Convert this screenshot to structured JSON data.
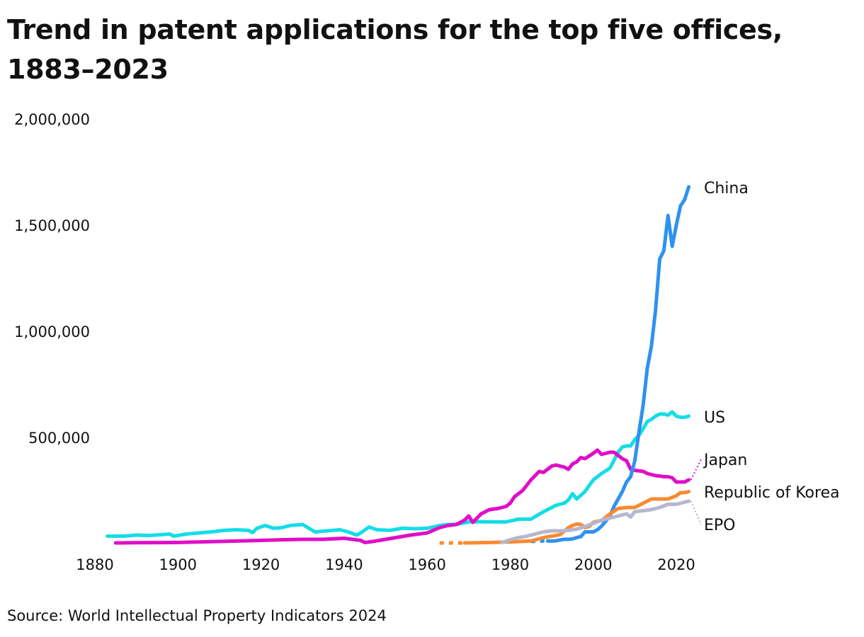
{
  "title": "Trend in patent applications for the top five offices, 1883–2023",
  "source": "Source: World Intellectual Property Indicators 2024",
  "chart_data": {
    "type": "line",
    "title": "Trend in patent applications for the top five offices, 1883–2023",
    "xlabel": "",
    "ylabel": "",
    "xlim": [
      1883,
      2023
    ],
    "ylim": [
      0,
      2000000
    ],
    "y_ticks": [
      {
        "value": 500000,
        "label": "500,000"
      },
      {
        "value": 1000000,
        "label": "1,000,000"
      },
      {
        "value": 1500000,
        "label": "1,500,000"
      },
      {
        "value": 2000000,
        "label": "2,000,000"
      }
    ],
    "x_ticks": [
      {
        "value": 1880,
        "label": "1880"
      },
      {
        "value": 1900,
        "label": "1900"
      },
      {
        "value": 1920,
        "label": "1920"
      },
      {
        "value": 1940,
        "label": "1940"
      },
      {
        "value": 1960,
        "label": "1960"
      },
      {
        "value": 1980,
        "label": "1980"
      },
      {
        "value": 2000,
        "label": "2000"
      },
      {
        "value": 2020,
        "label": "2020"
      }
    ],
    "grid": false,
    "legend": "direct labels at right end of lines",
    "series": [
      {
        "name": "US",
        "color": "#14dde6",
        "x": [
          1883,
          1887,
          1890,
          1893,
          1896,
          1898,
          1899,
          1902,
          1905,
          1908,
          1911,
          1914,
          1917,
          1918,
          1919,
          1921,
          1923,
          1925,
          1927,
          1930,
          1933,
          1936,
          1939,
          1941,
          1943,
          1944,
          1946,
          1948,
          1951,
          1954,
          1957,
          1960,
          1963,
          1965,
          1967,
          1970,
          1973,
          1976,
          1979,
          1982,
          1985,
          1988,
          1991,
          1993,
          1994,
          1995,
          1996,
          1998,
          2000,
          2002,
          2004,
          2006,
          2007,
          2008,
          2009,
          2010,
          2011,
          2012,
          2013,
          2014,
          2015,
          2016,
          2017,
          2018,
          2019,
          2020,
          2021,
          2022,
          2023
        ],
        "values": [
          35000,
          35000,
          40000,
          38000,
          42000,
          45000,
          35000,
          45000,
          50000,
          55000,
          62000,
          65000,
          62000,
          52000,
          72000,
          85000,
          72000,
          75000,
          85000,
          90000,
          55000,
          60000,
          65000,
          55000,
          40000,
          50000,
          78000,
          65000,
          62000,
          72000,
          70000,
          72000,
          85000,
          90000,
          90000,
          102000,
          103000,
          102000,
          102000,
          115000,
          115000,
          150000,
          180000,
          190000,
          205000,
          235000,
          210000,
          245000,
          300000,
          330000,
          355000,
          430000,
          455000,
          460000,
          460000,
          490000,
          510000,
          540000,
          575000,
          585000,
          600000,
          610000,
          610000,
          605000,
          620000,
          600000,
          595000,
          595000,
          600000
        ]
      },
      {
        "name": "Japan",
        "color": "#e10dc8",
        "x": [
          1885,
          1890,
          1900,
          1910,
          1920,
          1925,
          1930,
          1935,
          1940,
          1942,
          1944,
          1945,
          1947,
          1950,
          1953,
          1956,
          1960,
          1963,
          1965,
          1967,
          1969,
          1970,
          1971,
          1973,
          1975,
          1977,
          1979,
          1980,
          1981,
          1983,
          1985,
          1987,
          1988,
          1990,
          1991,
          1993,
          1994,
          1995,
          1996,
          1997,
          1998,
          2000,
          2001,
          2002,
          2004,
          2005,
          2006,
          2007,
          2008,
          2009,
          2010,
          2012,
          2013,
          2014,
          2015,
          2016,
          2017,
          2018,
          2019,
          2020,
          2021,
          2022,
          2023
        ],
        "values": [
          3000,
          4000,
          5000,
          10000,
          15000,
          18000,
          20000,
          20000,
          25000,
          20000,
          15000,
          5000,
          10000,
          20000,
          30000,
          40000,
          50000,
          75000,
          85000,
          90000,
          110000,
          130000,
          100000,
          140000,
          160000,
          165000,
          175000,
          190000,
          220000,
          250000,
          300000,
          340000,
          335000,
          365000,
          370000,
          360000,
          350000,
          375000,
          385000,
          405000,
          400000,
          425000,
          440000,
          420000,
          430000,
          430000,
          415000,
          400000,
          390000,
          350000,
          345000,
          340000,
          330000,
          325000,
          320000,
          318000,
          315000,
          315000,
          310000,
          290000,
          290000,
          290000,
          300000
        ]
      },
      {
        "name": "China",
        "color": "#2e92f0",
        "gap_before": 1989,
        "x": [
          1985,
          1988,
          1989,
          1990,
          1991,
          1992,
          1993,
          1994,
          1995,
          1996,
          1997,
          1998,
          1999,
          2000,
          2001,
          2002,
          2003,
          2004,
          2005,
          2006,
          2007,
          2008,
          2009,
          2010,
          2011,
          2012,
          2013,
          2014,
          2015,
          2016,
          2017,
          2018,
          2019,
          2020,
          2021,
          2022,
          2023
        ],
        "values": [
          10000,
          12000,
          12000,
          12000,
          13000,
          17000,
          20000,
          20000,
          22000,
          28000,
          33000,
          55000,
          55000,
          55000,
          65000,
          82000,
          105000,
          130000,
          175000,
          210000,
          245000,
          290000,
          315000,
          390000,
          525000,
          650000,
          825000,
          930000,
          1100000,
          1340000,
          1380000,
          1545000,
          1400000,
          1500000,
          1590000,
          1620000,
          1680000
        ]
      },
      {
        "name": "Republic of Korea",
        "color": "#f98a32",
        "gap_before": 1969,
        "x": [
          1963,
          1966,
          1969,
          1975,
          1980,
          1985,
          1988,
          1990,
          1992,
          1993,
          1994,
          1995,
          1996,
          1997,
          1998,
          1999,
          2000,
          2001,
          2002,
          2004,
          2006,
          2008,
          2010,
          2012,
          2014,
          2016,
          2018,
          2020,
          2021,
          2022,
          2023
        ],
        "values": [
          3000,
          3000,
          3000,
          5000,
          8000,
          12000,
          28000,
          35000,
          42000,
          58000,
          75000,
          85000,
          92000,
          90000,
          75000,
          80000,
          100000,
          105000,
          108000,
          140000,
          165000,
          170000,
          170000,
          190000,
          210000,
          210000,
          210000,
          225000,
          240000,
          240000,
          245000
        ]
      },
      {
        "name": "EPO",
        "color": "#b6b6ce",
        "x": [
          1978,
          1980,
          1982,
          1984,
          1986,
          1988,
          1990,
          1992,
          1994,
          1996,
          1998,
          2000,
          2002,
          2004,
          2006,
          2008,
          2009,
          2010,
          2012,
          2014,
          2016,
          2018,
          2020,
          2022,
          2023
        ],
        "values": [
          5000,
          18000,
          28000,
          35000,
          45000,
          55000,
          60000,
          60000,
          62000,
          68000,
          80000,
          95000,
          110000,
          120000,
          130000,
          140000,
          125000,
          150000,
          155000,
          160000,
          170000,
          185000,
          185000,
          195000,
          200000
        ]
      }
    ],
    "labels": [
      {
        "series": "China",
        "text": "China"
      },
      {
        "series": "US",
        "text": "US"
      },
      {
        "series": "Japan",
        "text": "Japan"
      },
      {
        "series": "Republic of Korea",
        "text": "Republic of Korea"
      },
      {
        "series": "EPO",
        "text": "EPO"
      }
    ]
  }
}
